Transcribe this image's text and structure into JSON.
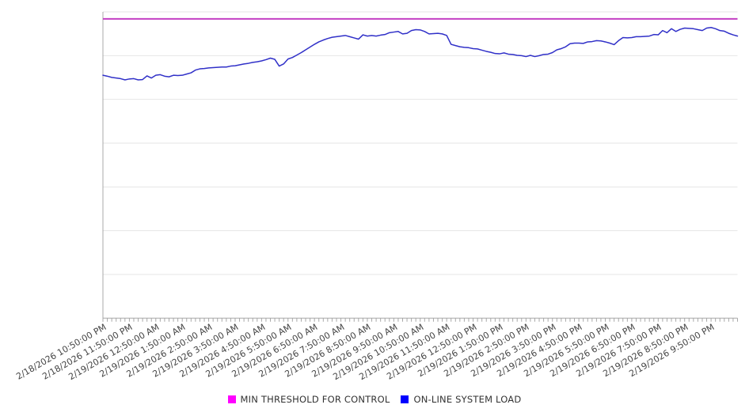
{
  "chart_data": {
    "type": "line",
    "title": "",
    "x_axis": {
      "tick_labels": [
        "2/18/2026 10:50:00 PM",
        "2/18/2026 11:50:00 PM",
        "2/19/2026 12:50:00 AM",
        "2/19/2026 1:50:00 AM",
        "2/19/2026 2:50:00 AM",
        "2/19/2026 3:50:00 AM",
        "2/19/2026 4:50:00 AM",
        "2/19/2026 5:50:00 AM",
        "2/19/2026 6:50:00 AM",
        "2/19/2026 7:50:00 AM",
        "2/19/2026 8:50:00 AM",
        "2/19/2026 9:50:00 AM",
        "2/19/2026 10:50:00 AM",
        "2/19/2026 11:50:00 AM",
        "2/19/2026 12:50:00 PM",
        "2/19/2026 1:50:00 PM",
        "2/19/2026 2:50:00 PM",
        "2/19/2026 3:50:00 PM",
        "2/19/2026 4:50:00 PM",
        "2/19/2026 5:50:00 PM",
        "2/19/2026 6:50:00 PM",
        "2/19/2026 7:50:00 PM",
        "2/19/2026 8:50:00 PM",
        "2/19/2026 9:50:00 PM"
      ],
      "labeled_tick_interval": "1 hour",
      "minor_tick_interval": "10 minutes",
      "minor_ticks_per_label": 6
    },
    "y_axis": {
      "labels_visible": false,
      "range_relative": [
        0,
        100
      ],
      "gridlines": true,
      "gridline_bands": 7
    },
    "legend_position": "bottom",
    "series": [
      {
        "name": "MIN THRESHOLD FOR CONTROL",
        "kind": "constant-threshold",
        "swatch_color": "#ff00ff",
        "line_color": "#c33fc3",
        "value": 97.7
      },
      {
        "name": "ON-LINE SYSTEM LOAD",
        "kind": "line",
        "swatch_color": "#0000ff",
        "line_color": "#3030c8",
        "values": [
          79.3,
          79.0,
          78.6,
          78.4,
          78.2,
          77.8,
          78.1,
          78.2,
          77.8,
          77.9,
          79.1,
          78.4,
          79.3,
          79.5,
          79.0,
          78.8,
          79.3,
          79.2,
          79.3,
          79.7,
          80.1,
          81.0,
          81.4,
          81.5,
          81.7,
          81.8,
          81.9,
          82.0,
          82.0,
          82.3,
          82.4,
          82.7,
          83.0,
          83.2,
          83.5,
          83.7,
          84.0,
          84.4,
          84.9,
          84.5,
          82.3,
          83.0,
          84.6,
          85.1,
          85.9,
          86.7,
          87.6,
          88.5,
          89.4,
          90.2,
          90.8,
          91.3,
          91.7,
          91.9,
          92.1,
          92.3,
          91.9,
          91.5,
          91.1,
          92.5,
          92.1,
          92.3,
          92.1,
          92.4,
          92.6,
          93.2,
          93.4,
          93.6,
          92.8,
          93.0,
          93.9,
          94.2,
          94.1,
          93.6,
          92.8,
          92.9,
          93.0,
          92.8,
          92.3,
          89.4,
          89.0,
          88.6,
          88.4,
          88.3,
          88.0,
          87.9,
          87.5,
          87.1,
          86.8,
          86.4,
          86.3,
          86.6,
          86.2,
          86.1,
          85.8,
          85.7,
          85.4,
          85.8,
          85.4,
          85.7,
          86.1,
          86.2,
          86.7,
          87.6,
          88.0,
          88.6,
          89.6,
          89.8,
          89.8,
          89.7,
          90.2,
          90.3,
          90.6,
          90.5,
          90.2,
          89.8,
          89.3,
          90.6,
          91.6,
          91.5,
          91.6,
          91.9,
          91.9,
          92.0,
          92.1,
          92.6,
          92.5,
          93.9,
          93.2,
          94.5,
          93.6,
          94.3,
          94.7,
          94.6,
          94.5,
          94.2,
          93.9,
          94.7,
          94.9,
          94.5,
          93.9,
          93.7,
          93.0,
          92.5,
          92.1
        ]
      }
    ]
  },
  "legend": {
    "items": [
      {
        "label": "MIN THRESHOLD FOR CONTROL",
        "swatch_color": "#ff00ff"
      },
      {
        "label": "ON-LINE SYSTEM LOAD",
        "swatch_color": "#0000ff"
      }
    ]
  },
  "colors": {
    "background": "#ffffff",
    "gridline": "#e6e6e6",
    "axis": "#a8a8a8",
    "label_text": "#444444",
    "legend_text": "#333333"
  }
}
